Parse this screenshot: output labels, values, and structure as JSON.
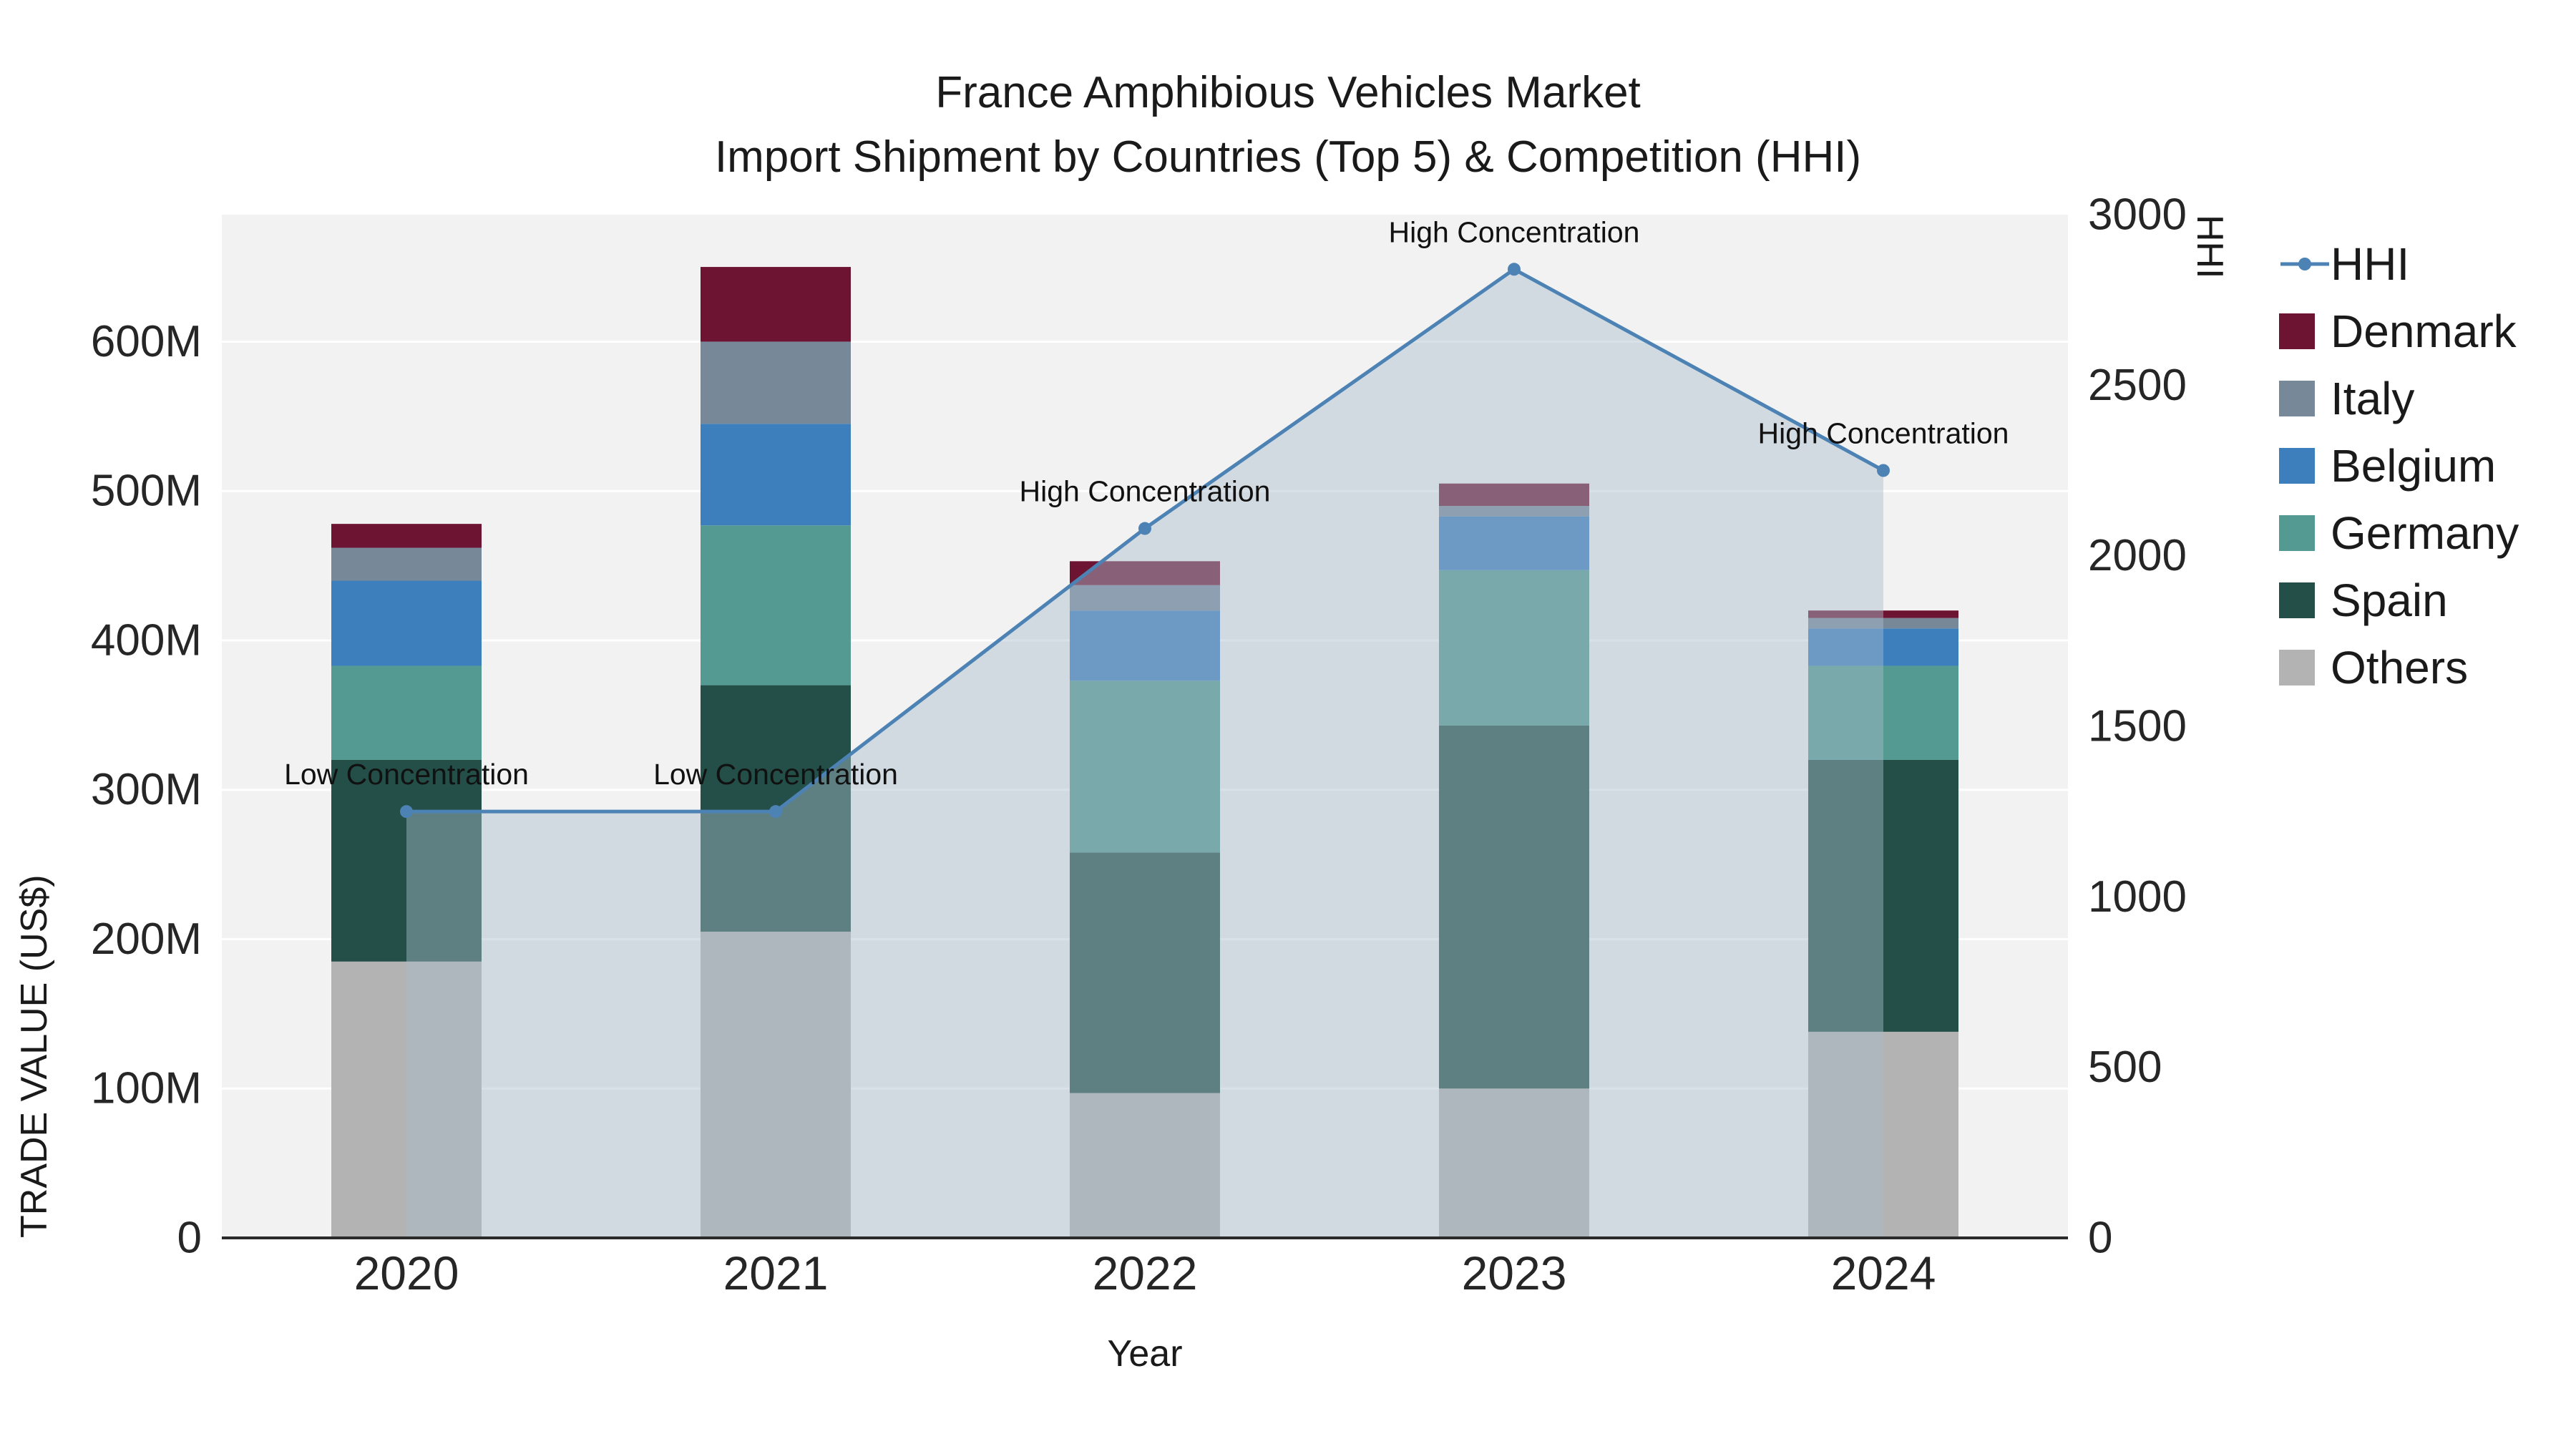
{
  "chart": {
    "title_line1": "France Amphibious Vehicles Market",
    "title_line2": "Import Shipment by Countries (Top 5) & Competition (HHI)",
    "x_axis_title": "Year",
    "left_axis_title": "TRADE VALUE (US$)",
    "right_axis_title": "HHI"
  },
  "chart_data": {
    "type": "bar",
    "subtype": "stacked-bars-with-line",
    "categories": [
      "2020",
      "2021",
      "2022",
      "2023",
      "2024"
    ],
    "bar_value_unit": "million US$",
    "series": [
      {
        "name": "Others",
        "color": "#b3b3b3",
        "values": [
          185,
          205,
          97,
          100,
          138
        ]
      },
      {
        "name": "Spain",
        "color": "#234f48",
        "values": [
          135,
          165,
          161,
          243,
          182
        ]
      },
      {
        "name": "Germany",
        "color": "#549a93",
        "values": [
          63,
          107,
          115,
          104,
          63
        ]
      },
      {
        "name": "Belgium",
        "color": "#3d7ebd",
        "values": [
          57,
          68,
          47,
          36,
          25
        ]
      },
      {
        "name": "Italy",
        "color": "#778899",
        "values": [
          22,
          55,
          17,
          7,
          7
        ]
      },
      {
        "name": "Denmark",
        "color": "#6e1433",
        "values": [
          16,
          50,
          16,
          15,
          5
        ]
      }
    ],
    "line_series": {
      "name": "HHI",
      "color": "#4d82b4",
      "values": [
        1250,
        1250,
        2080,
        2840,
        2250
      ],
      "fill_color": "#a8bccd",
      "fill_opacity": 0.45
    },
    "annotations": [
      "Low Concentration",
      "Low Concentration",
      "High Concentration",
      "High Concentration",
      "High Concentration"
    ],
    "left_axis": {
      "ticks": [
        "0",
        "100M",
        "200M",
        "300M",
        "400M",
        "500M",
        "600M"
      ],
      "tick_values": [
        0,
        100,
        200,
        300,
        400,
        500,
        600
      ],
      "max": 685
    },
    "right_axis": {
      "ticks": [
        "0",
        "500",
        "1000",
        "1500",
        "2000",
        "2500",
        "3000"
      ],
      "tick_values": [
        0,
        500,
        1000,
        1500,
        2000,
        2500,
        3000
      ],
      "max": 3000
    },
    "legend": [
      {
        "label": "HHI",
        "type": "line",
        "color": "#4d82b4"
      },
      {
        "label": "Denmark",
        "type": "square",
        "color": "#6e1433"
      },
      {
        "label": "Italy",
        "type": "square",
        "color": "#778899"
      },
      {
        "label": "Belgium",
        "type": "square",
        "color": "#3d7ebd"
      },
      {
        "label": "Germany",
        "type": "square",
        "color": "#549a93"
      },
      {
        "label": "Spain",
        "type": "square",
        "color": "#234f48"
      },
      {
        "label": "Others",
        "type": "square",
        "color": "#b3b3b3"
      }
    ],
    "style": {
      "plot_background": "#f2f2f2",
      "gridline_color": "#ffffff",
      "axis_line_color": "#2a2a2a",
      "text_color": "#262626"
    }
  }
}
